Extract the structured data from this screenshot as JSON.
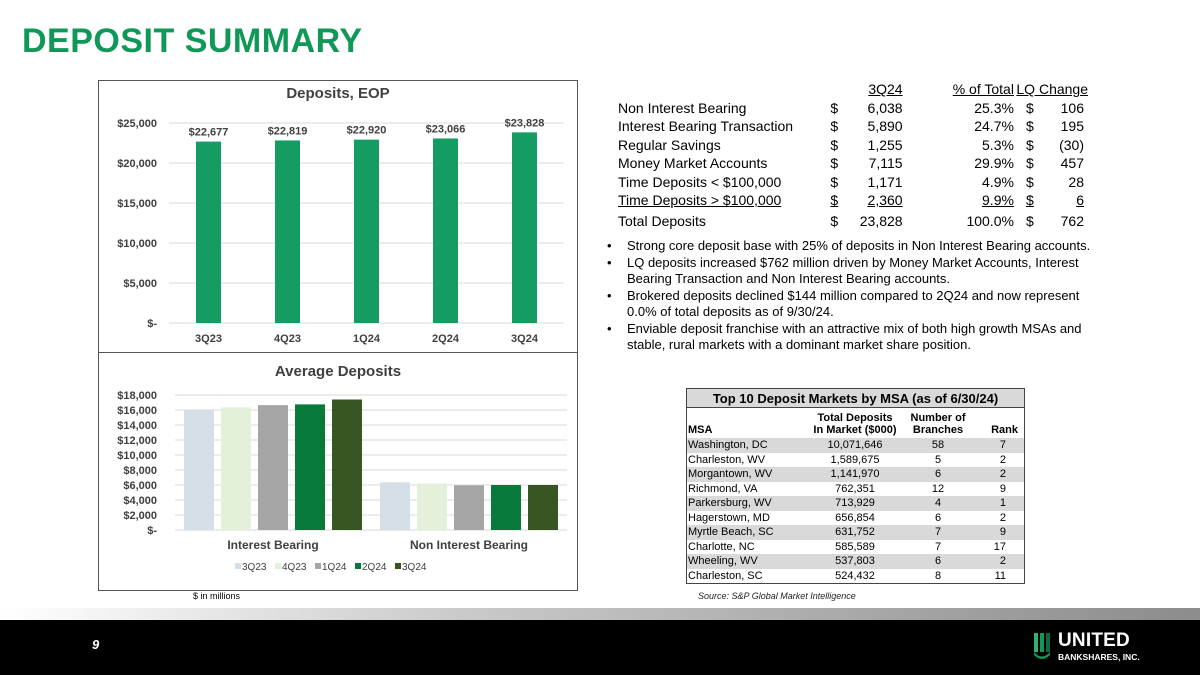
{
  "page_title": "DEPOSIT SUMMARY",
  "colors": {
    "brand_green": "#109858",
    "bar_green": "#149c63",
    "series": [
      "#d4dfe8",
      "#e3f0da",
      "#a5a5a5",
      "#077a3a",
      "#375623"
    ]
  },
  "chart_data": [
    {
      "type": "bar",
      "title": "Deposits, EOP",
      "categories": [
        "3Q23",
        "4Q23",
        "1Q24",
        "2Q24",
        "3Q24"
      ],
      "values": [
        22677,
        22819,
        22920,
        23066,
        23828
      ],
      "data_labels": [
        "$22,677",
        "$22,819",
        "$22,920",
        "$23,066",
        "$23,828"
      ],
      "ylim": [
        0,
        25000
      ],
      "yticks": [
        0,
        5000,
        10000,
        15000,
        20000,
        25000
      ],
      "ytick_labels": [
        "$-",
        "$5,000",
        "$10,000",
        "$15,000",
        "$20,000",
        "$25,000"
      ],
      "grid": true,
      "legend": "none"
    },
    {
      "type": "bar",
      "title": "Average Deposits",
      "categories": [
        "Interest Bearing",
        "Non Interest Bearing"
      ],
      "series": [
        {
          "name": "3Q23",
          "values": [
            15950,
            6350
          ]
        },
        {
          "name": "4Q23",
          "values": [
            16350,
            6200
          ]
        },
        {
          "name": "1Q24",
          "values": [
            16650,
            5950
          ]
        },
        {
          "name": "2Q24",
          "values": [
            16750,
            6000
          ]
        },
        {
          "name": "3Q24",
          "values": [
            17400,
            6000
          ]
        }
      ],
      "ylim": [
        0,
        18000
      ],
      "yticks": [
        0,
        2000,
        4000,
        6000,
        8000,
        10000,
        12000,
        14000,
        16000,
        18000
      ],
      "ytick_labels": [
        "$-",
        "$2,000",
        "$4,000",
        "$6,000",
        "$8,000",
        "$10,000",
        "$12,000",
        "$14,000",
        "$16,000",
        "$18,000"
      ],
      "grid": true,
      "legend": "bottom"
    }
  ],
  "units_note": "$ in millions",
  "deposit_table": {
    "headers": [
      "3Q24",
      "% of Total",
      "LQ Change"
    ],
    "rows": [
      {
        "label": "Non Interest Bearing",
        "cur": "$",
        "amount": "6,038",
        "pct": "25.3%",
        "cur2": "$",
        "change": "106"
      },
      {
        "label": "Interest Bearing Transaction",
        "cur": "$",
        "amount": "5,890",
        "pct": "24.7%",
        "cur2": "$",
        "change": "195"
      },
      {
        "label": "Regular Savings",
        "cur": "$",
        "amount": "1,255",
        "pct": "5.3%",
        "cur2": "$",
        "change": "(30)"
      },
      {
        "label": "Money Market Accounts",
        "cur": "$",
        "amount": "7,115",
        "pct": "29.9%",
        "cur2": "$",
        "change": "457"
      },
      {
        "label": "Time Deposits < $100,000",
        "cur": "$",
        "amount": "1,171",
        "pct": "4.9%",
        "cur2": "$",
        "change": "28"
      },
      {
        "label": "Time Deposits > $100,000",
        "cur": "$",
        "amount": "2,360",
        "pct": "9.9%",
        "cur2": "$",
        "change": "6"
      }
    ],
    "total": {
      "label": "Total Deposits",
      "cur": "$",
      "amount": "23,828",
      "pct": "100.0%",
      "cur2": "$",
      "change": "762"
    }
  },
  "bullets": [
    "Strong core deposit base with 25% of deposits in Non Interest Bearing accounts.",
    "LQ deposits increased $762 million driven by Money Market Accounts, Interest Bearing Transaction and Non Interest Bearing accounts.",
    "Brokered deposits declined $144 million compared to 2Q24 and now represent 0.0% of total deposits as of 9/30/24.",
    "Enviable deposit franchise with an attractive mix of both high growth MSAs and stable, rural markets with a dominant market share position."
  ],
  "msa_table": {
    "title": "Top 10 Deposit Markets by MSA (as of 6/30/24)",
    "headers": {
      "msa": "MSA",
      "deposits_line1": "Total Deposits",
      "deposits_line2": "In Market ($000)",
      "branches_line1": "Number of",
      "branches_line2": "Branches",
      "rank": "Rank"
    },
    "rows": [
      {
        "msa": "Washington, DC",
        "deposits": "10,071,646",
        "branches": "58",
        "rank": "7"
      },
      {
        "msa": "Charleston, WV",
        "deposits": "1,589,675",
        "branches": "5",
        "rank": "2"
      },
      {
        "msa": "Morgantown, WV",
        "deposits": "1,141,970",
        "branches": "6",
        "rank": "2"
      },
      {
        "msa": "Richmond, VA",
        "deposits": "762,351",
        "branches": "12",
        "rank": "9"
      },
      {
        "msa": "Parkersburg, WV",
        "deposits": "713,929",
        "branches": "4",
        "rank": "1"
      },
      {
        "msa": "Hagerstown, MD",
        "deposits": "656,854",
        "branches": "6",
        "rank": "2"
      },
      {
        "msa": "Myrtle Beach, SC",
        "deposits": "631,752",
        "branches": "7",
        "rank": "9"
      },
      {
        "msa": "Charlotte, NC",
        "deposits": "585,589",
        "branches": "7",
        "rank": "17"
      },
      {
        "msa": "Wheeling, WV",
        "deposits": "537,803",
        "branches": "6",
        "rank": "2"
      },
      {
        "msa": "Charleston, SC",
        "deposits": "524,432",
        "branches": "8",
        "rank": "11"
      }
    ]
  },
  "source_note": "Source: S&P Global Market Intelligence",
  "footer": {
    "page_number": "9",
    "logo_name": "UNITED",
    "logo_sub": "BANKSHARES, INC.",
    "logo_icon": "united-bankshares-logo-icon"
  }
}
